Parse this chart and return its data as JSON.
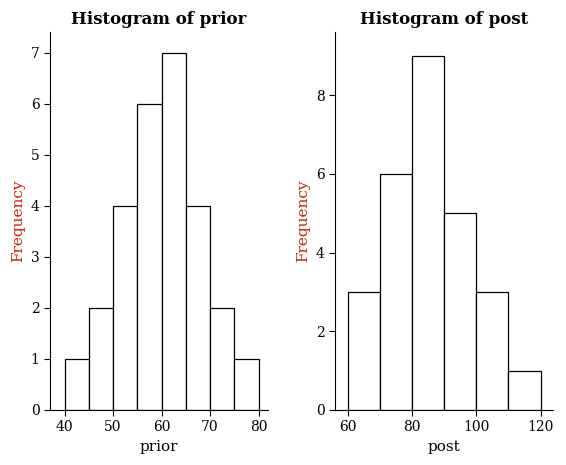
{
  "prior_bins": [
    40,
    45,
    50,
    55,
    60,
    65,
    70,
    75,
    80
  ],
  "prior_counts": [
    1,
    2,
    4,
    6,
    7,
    4,
    2,
    1
  ],
  "prior_title": "Histogram of prior",
  "prior_xlabel": "prior",
  "prior_ylabel": "Frequency",
  "prior_xlim": [
    37,
    82
  ],
  "prior_ylim": [
    0,
    7.4
  ],
  "prior_yticks": [
    0,
    1,
    2,
    3,
    4,
    5,
    6,
    7
  ],
  "prior_xticks": [
    40,
    50,
    60,
    70,
    80
  ],
  "post_bins": [
    60,
    70,
    80,
    90,
    100,
    110,
    120
  ],
  "post_counts": [
    3,
    6,
    9,
    5,
    3,
    1
  ],
  "post_title": "Histogram of post",
  "post_xlabel": "post",
  "post_ylabel": "Frequency",
  "post_xlim": [
    56,
    124
  ],
  "post_ylim": [
    0,
    9.6
  ],
  "post_yticks": [
    0,
    2,
    4,
    6,
    8
  ],
  "post_xticks": [
    60,
    80,
    100,
    120
  ],
  "bar_facecolor": "#ffffff",
  "bar_edgecolor": "#000000",
  "title_fontsize": 12,
  "label_fontsize": 11,
  "tick_fontsize": 10,
  "title_fontweight": "bold",
  "ylabel_color": "#cc2200",
  "background_color": "#ffffff",
  "font_family": "DejaVu Serif"
}
